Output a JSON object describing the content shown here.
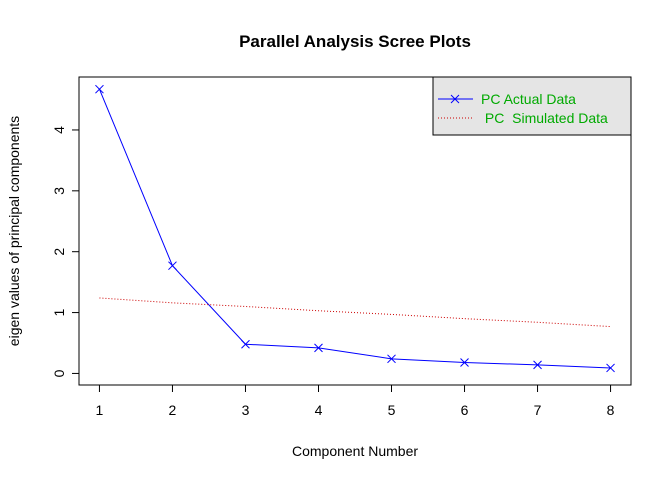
{
  "chart_data": {
    "type": "line",
    "title": "Parallel Analysis Scree Plots",
    "xlabel": "Component Number",
    "ylabel": "eigen values of principal components",
    "x": [
      1,
      2,
      3,
      4,
      5,
      6,
      7,
      8
    ],
    "xticks": [
      "1",
      "2",
      "3",
      "4",
      "5",
      "6",
      "7",
      "8"
    ],
    "yticks": [
      "0",
      "1",
      "2",
      "3",
      "4"
    ],
    "xlim": [
      0.72,
      8.28
    ],
    "ylim": [
      -0.19,
      4.87
    ],
    "grid": false,
    "legend_position": "top-right",
    "series": [
      {
        "name": "PC  Actual Data",
        "values": [
          4.67,
          1.77,
          0.48,
          0.42,
          0.24,
          0.18,
          0.14,
          0.09
        ],
        "color": "#0000ff",
        "line_style": "solid",
        "marker": "x",
        "legend_text_color": "#00aa00"
      },
      {
        "name": " PC  Simulated Data",
        "values": [
          1.24,
          1.16,
          1.1,
          1.03,
          0.97,
          0.9,
          0.84,
          0.77
        ],
        "color": "#cc0000",
        "line_style": "dotted",
        "marker": "none",
        "legend_text_color": "#00aa00"
      }
    ],
    "legend_background": "#e5e5e5"
  }
}
